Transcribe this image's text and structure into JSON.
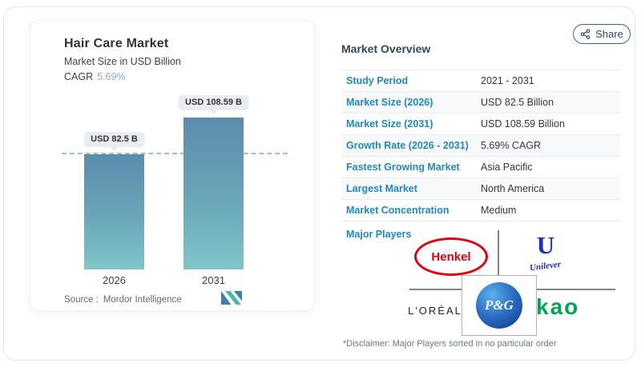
{
  "share": {
    "label": "Share"
  },
  "chart_card": {
    "title": "Hair Care Market",
    "subtitle": "Market Size in USD Billion",
    "cagr_label": "CAGR",
    "cagr_value": "5.69%",
    "source_label": "Source :",
    "source_value": "Mordor Intelligence"
  },
  "chart_data": {
    "type": "bar",
    "title": "Hair Care Market",
    "subtitle": "Market Size in USD Billion",
    "cagr": "5.69%",
    "categories": [
      "2026",
      "2031"
    ],
    "values": [
      82.5,
      108.59
    ],
    "bar_labels": [
      "USD 82.5 B",
      "USD 108.59 B"
    ],
    "unit": "USD Billion",
    "ylim": [
      0,
      115
    ],
    "reference_line": 82.5,
    "grid": false,
    "bar_gradient_top": "#5b8cad",
    "bar_gradient_bottom": "#80c5c9"
  },
  "overview": {
    "title": "Market Overview",
    "rows": [
      {
        "label": "Study Period",
        "value": "2021 - 2031"
      },
      {
        "label": "Market Size (2026)",
        "value": "USD 82.5 Billion"
      },
      {
        "label": "Market Size (2031)",
        "value": "USD 108.59 Billion"
      },
      {
        "label": "Growth Rate (2026 - 2031)",
        "value": "5.69% CAGR"
      },
      {
        "label": "Fastest Growing Market",
        "value": "Asia Pacific"
      },
      {
        "label": "Largest Market",
        "value": "North America"
      },
      {
        "label": "Market Concentration",
        "value": "Medium"
      }
    ],
    "major_players_label": "Major Players",
    "brands": {
      "henkel": "Henkel",
      "unilever_monogram": "U",
      "unilever": "Unilever",
      "loreal": "L'ORÉAL",
      "pg": "P&G",
      "kao": "kao"
    },
    "disclaimer": "*Disclaimer: Major Players sorted in no particular order"
  },
  "colors": {
    "accent_blue": "#2089bf",
    "cagr_blue": "#92a9c6",
    "henkel_red": "#e1000f",
    "unilever_blue": "#1d2ec1",
    "kao_green": "#00a44e",
    "pg_blue": "#0c3a8a",
    "mordor_blue": "#3e7ea7",
    "mordor_teal": "#43b9b4",
    "share_border": "#3f657d"
  }
}
